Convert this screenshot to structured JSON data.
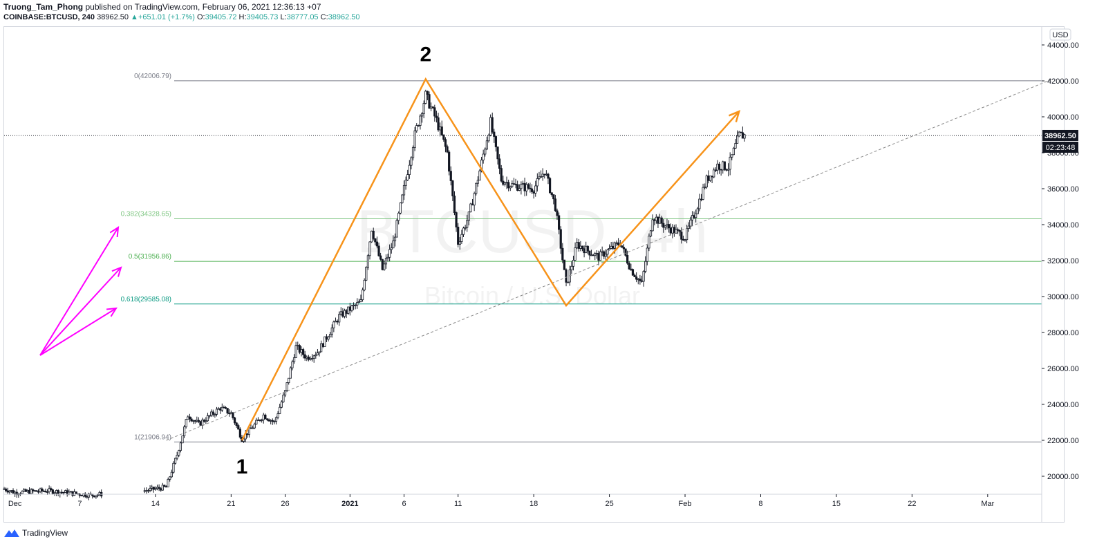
{
  "header": {
    "author": "Truong_Tam_Phong",
    "published": "published on TradingView.com, February 06, 2021 12:36:13 +07"
  },
  "symbol": {
    "name": "COINBASE:BTCUSD, 240",
    "last": "38962.50",
    "change": "+651.01 (+1.7%)",
    "o_label": "O:",
    "o": "39405.72",
    "h_label": "H:",
    "h": "39405.73",
    "l_label": "L:",
    "l": "38777.05",
    "c_label": "C:",
    "c": "38962.50"
  },
  "brand": {
    "name": "TradingView"
  },
  "chart_data": {
    "type": "candlestick",
    "title": "",
    "currency": "USD",
    "watermark": {
      "symbol": "BTCUSD, 4h",
      "description": "Bitcoin / U.S. Dollar"
    },
    "ylim": [
      19000,
      45000
    ],
    "y_ticks": [
      20000,
      22000,
      24000,
      26000,
      28000,
      30000,
      32000,
      34000,
      36000,
      38000,
      40000,
      42000,
      44000
    ],
    "y_tick_labels": [
      "20000.00",
      "22000.00",
      "24000.00",
      "26000.00",
      "28000.00",
      "30000.00",
      "32000.00",
      "34000.00",
      "36000.00",
      "38000.00",
      "40000.00",
      "42000.00",
      "44000.00"
    ],
    "x_range": [
      "2020-11-30",
      "2021-03-06"
    ],
    "x_ticks": [
      {
        "date": "2020-12-01",
        "label": "Dec"
      },
      {
        "date": "2020-12-07",
        "label": "7"
      },
      {
        "date": "2020-12-14",
        "label": "14"
      },
      {
        "date": "2020-12-21",
        "label": "21"
      },
      {
        "date": "2020-12-26",
        "label": "26"
      },
      {
        "date": "2021-01-01",
        "label": "2021"
      },
      {
        "date": "2021-01-06",
        "label": "6"
      },
      {
        "date": "2021-01-11",
        "label": "11"
      },
      {
        "date": "2021-01-18",
        "label": "18"
      },
      {
        "date": "2021-01-25",
        "label": "25"
      },
      {
        "date": "2021-02-01",
        "label": "Feb"
      },
      {
        "date": "2021-02-08",
        "label": "8"
      },
      {
        "date": "2021-02-15",
        "label": "15"
      },
      {
        "date": "2021-02-22",
        "label": "22"
      },
      {
        "date": "2021-03-01",
        "label": "Mar"
      }
    ],
    "price_keypoints": [
      {
        "date": "2020-11-30",
        "price": 19300
      },
      {
        "date": "2020-12-01",
        "price": 19100
      },
      {
        "date": "2020-12-04",
        "price": 19200
      },
      {
        "date": "2020-12-08",
        "price": 18950
      },
      {
        "date": "2020-12-13",
        "price": 19200
      },
      {
        "date": "2020-12-15",
        "price": 19400
      },
      {
        "date": "2020-12-16",
        "price": 21200
      },
      {
        "date": "2020-12-17",
        "price": 23400
      },
      {
        "date": "2020-12-18",
        "price": 22900
      },
      {
        "date": "2020-12-20",
        "price": 23800
      },
      {
        "date": "2020-12-21",
        "price": 23500
      },
      {
        "date": "2020-12-22",
        "price": 22100
      },
      {
        "date": "2020-12-24",
        "price": 23400
      },
      {
        "date": "2020-12-25",
        "price": 23000
      },
      {
        "date": "2020-12-26",
        "price": 24700
      },
      {
        "date": "2020-12-27",
        "price": 27200
      },
      {
        "date": "2020-12-28",
        "price": 26600
      },
      {
        "date": "2020-12-29",
        "price": 26900
      },
      {
        "date": "2020-12-31",
        "price": 28900
      },
      {
        "date": "2021-01-02",
        "price": 29700
      },
      {
        "date": "2021-01-03",
        "price": 33800
      },
      {
        "date": "2021-01-04",
        "price": 31500
      },
      {
        "date": "2021-01-05",
        "price": 33000
      },
      {
        "date": "2021-01-07",
        "price": 39000
      },
      {
        "date": "2021-01-08",
        "price": 41200
      },
      {
        "date": "2021-01-09",
        "price": 39800
      },
      {
        "date": "2021-01-10",
        "price": 38000
      },
      {
        "date": "2021-01-11",
        "price": 33000
      },
      {
        "date": "2021-01-12",
        "price": 34500
      },
      {
        "date": "2021-01-13",
        "price": 37000
      },
      {
        "date": "2021-01-14",
        "price": 39700
      },
      {
        "date": "2021-01-15",
        "price": 36500
      },
      {
        "date": "2021-01-16",
        "price": 36200
      },
      {
        "date": "2021-01-18",
        "price": 36000
      },
      {
        "date": "2021-01-19",
        "price": 37000
      },
      {
        "date": "2021-01-20",
        "price": 35000
      },
      {
        "date": "2021-01-21",
        "price": 30600
      },
      {
        "date": "2021-01-22",
        "price": 32900
      },
      {
        "date": "2021-01-24",
        "price": 32200
      },
      {
        "date": "2021-01-26",
        "price": 33000
      },
      {
        "date": "2021-01-27",
        "price": 31500
      },
      {
        "date": "2021-01-28",
        "price": 30700
      },
      {
        "date": "2021-01-29",
        "price": 34500
      },
      {
        "date": "2021-01-30",
        "price": 34000
      },
      {
        "date": "2021-02-01",
        "price": 33300
      },
      {
        "date": "2021-02-02",
        "price": 34800
      },
      {
        "date": "2021-02-03",
        "price": 36500
      },
      {
        "date": "2021-02-04",
        "price": 37300
      },
      {
        "date": "2021-02-05",
        "price": 37200
      },
      {
        "date": "2021-02-06",
        "price": 38962
      }
    ],
    "horizontal_levels": [
      {
        "label": "0(42006.79)",
        "price": 42006.79,
        "color": "#787b86"
      },
      {
        "label": "0.382(34328.65)",
        "price": 34328.65,
        "color": "#81c784"
      },
      {
        "label": "0.5(31956.86)",
        "price": 31956.86,
        "color": "#4caf50"
      },
      {
        "label": "0.618(29585.08)",
        "price": 29585.08,
        "color": "#089981"
      },
      {
        "label": "1(21906.94)",
        "price": 21906.94,
        "color": "#787b86"
      }
    ],
    "last_price": {
      "value": "38962.50",
      "price": 38962.5,
      "countdown": "02:23:48"
    },
    "wave_path": [
      {
        "date": "2020-12-22",
        "price": 22000
      },
      {
        "date": "2021-01-08",
        "price": 42100
      },
      {
        "date": "2021-01-21",
        "price": 29500
      },
      {
        "date": "2021-02-06",
        "price": 40300
      }
    ],
    "wave_labels": [
      {
        "text": "1",
        "date": "2020-12-22",
        "price": 21000
      },
      {
        "text": "2",
        "date": "2021-01-08",
        "price": 43100
      }
    ],
    "trendline": {
      "from": {
        "date": "2020-12-15",
        "price": 22000
      },
      "to": {
        "date": "2021-03-07",
        "price": 42100
      }
    },
    "line_colors": {
      "wave": "#f7931a",
      "trendline": "#888888",
      "arrows": "#ff00ff",
      "up": "#26a69a",
      "down": "#131722"
    }
  }
}
